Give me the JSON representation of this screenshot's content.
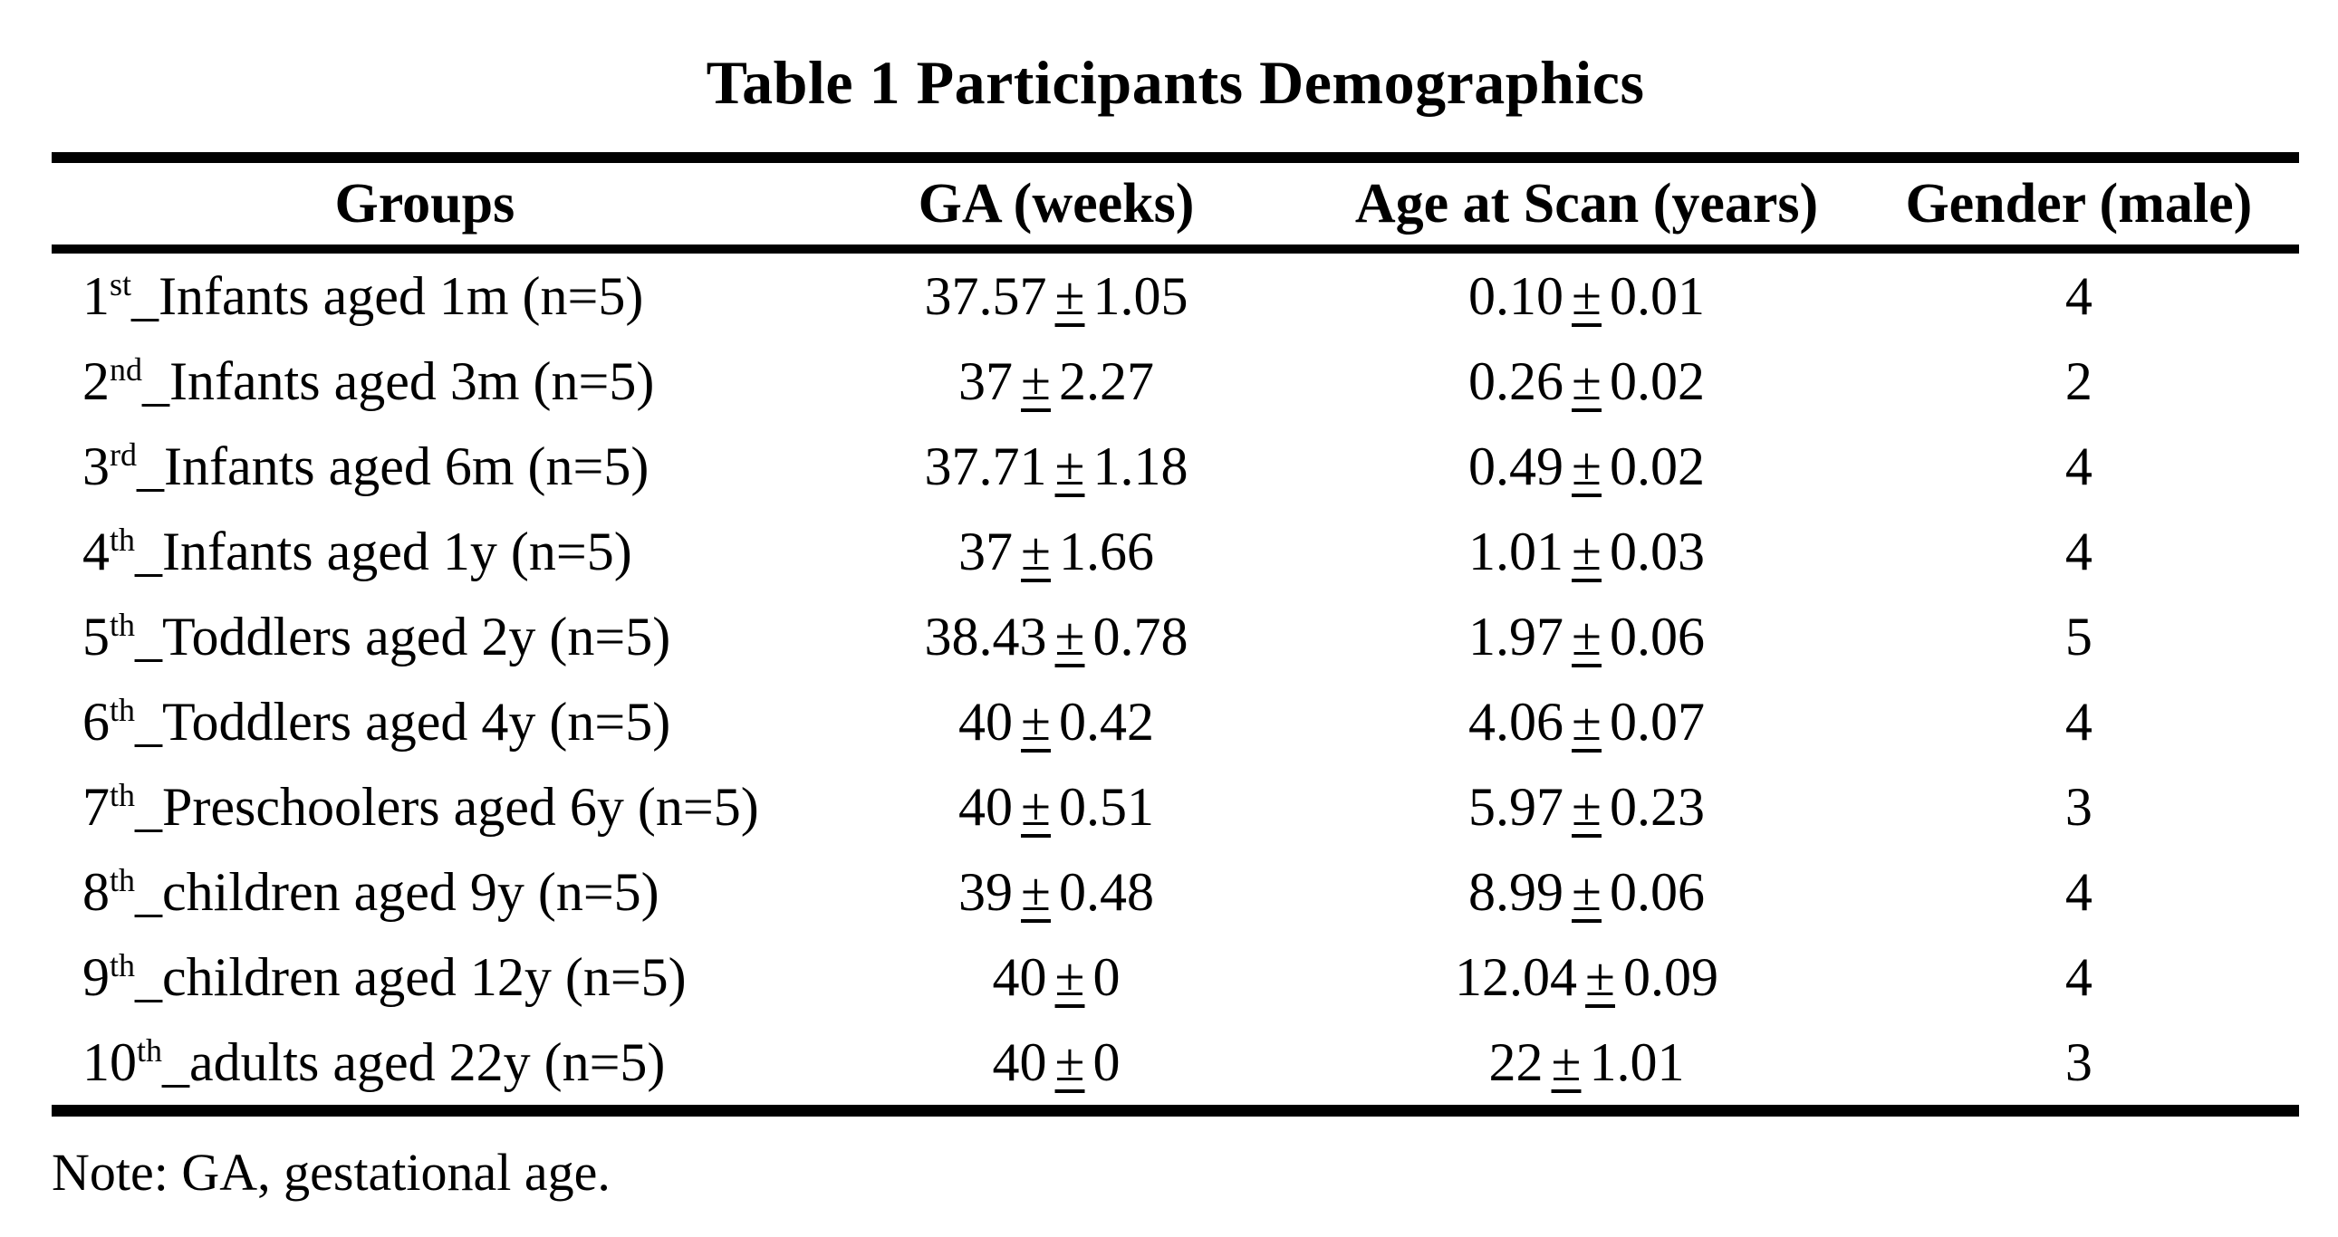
{
  "title": "Table 1 Participants Demographics",
  "symbols": {
    "plus_minus": "±"
  },
  "colors": {
    "text": "#000000",
    "background": "#ffffff",
    "rule": "#000000"
  },
  "table": {
    "columns": [
      "Groups",
      "GA (weeks)",
      "Age at Scan (years)",
      "Gender (male)"
    ],
    "rows": [
      {
        "group_num": "1",
        "group_sup": "st",
        "group_rest": "_Infants aged 1m (n=5)",
        "ga_mean": "37.57",
        "ga_sd": "1.05",
        "age_mean": "0.10",
        "age_sd": "0.01",
        "gender": "4"
      },
      {
        "group_num": "2",
        "group_sup": "nd",
        "group_rest": "_Infants aged 3m (n=5)",
        "ga_mean": "37",
        "ga_sd": "2.27",
        "age_mean": "0.26",
        "age_sd": "0.02",
        "gender": "2"
      },
      {
        "group_num": "3",
        "group_sup": "rd",
        "group_rest": "_Infants aged 6m (n=5)",
        "ga_mean": "37.71",
        "ga_sd": "1.18",
        "age_mean": "0.49",
        "age_sd": "0.02",
        "gender": "4"
      },
      {
        "group_num": "4",
        "group_sup": "th",
        "group_rest": "_Infants aged 1y (n=5)",
        "ga_mean": "37",
        "ga_sd": "1.66",
        "age_mean": "1.01",
        "age_sd": "0.03",
        "gender": "4"
      },
      {
        "group_num": "5",
        "group_sup": "th",
        "group_rest": "_Toddlers aged 2y (n=5)",
        "ga_mean": "38.43",
        "ga_sd": "0.78",
        "age_mean": "1.97",
        "age_sd": "0.06",
        "gender": "5"
      },
      {
        "group_num": "6",
        "group_sup": "th",
        "group_rest": "_Toddlers aged 4y (n=5)",
        "ga_mean": "40",
        "ga_sd": "0.42",
        "age_mean": "4.06",
        "age_sd": "0.07",
        "gender": "4"
      },
      {
        "group_num": "7",
        "group_sup": "th",
        "group_rest": "_Preschoolers aged 6y (n=5)",
        "ga_mean": "40",
        "ga_sd": "0.51",
        "age_mean": "5.97",
        "age_sd": "0.23",
        "gender": "3"
      },
      {
        "group_num": "8",
        "group_sup": "th",
        "group_rest": "_children aged 9y (n=5)",
        "ga_mean": "39",
        "ga_sd": "0.48",
        "age_mean": "8.99",
        "age_sd": "0.06",
        "gender": "4"
      },
      {
        "group_num": "9",
        "group_sup": "th",
        "group_rest": "_children aged 12y (n=5)",
        "ga_mean": "40",
        "ga_sd": "0",
        "age_mean": "12.04",
        "age_sd": "0.09",
        "gender": "4"
      },
      {
        "group_num": "10",
        "group_sup": "th",
        "group_rest": "_adults aged 22y (n=5)",
        "ga_mean": "40",
        "ga_sd": "0",
        "age_mean": "22",
        "age_sd": "1.01",
        "gender": "3"
      }
    ]
  },
  "note": "Note: GA, gestational age."
}
